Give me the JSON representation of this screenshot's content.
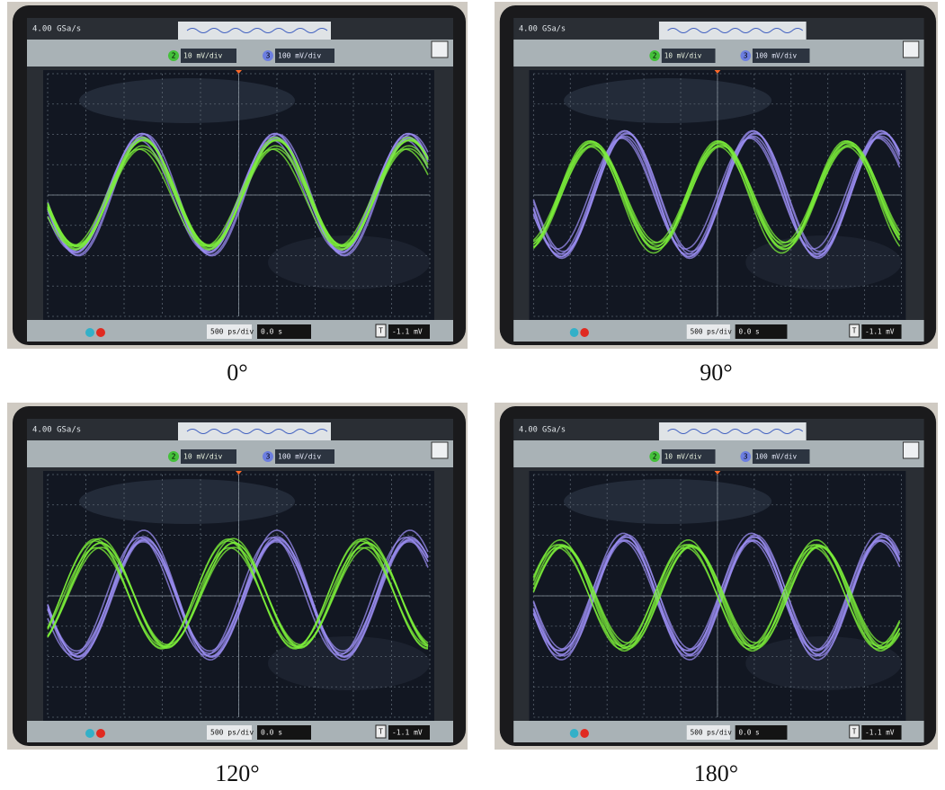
{
  "panels": [
    {
      "sample_rate": "4.00 GSa/s",
      "ch2_number": "2",
      "ch2_scale": "10 mV/div",
      "ch3_number": "3",
      "ch3_scale": "100 mV/div",
      "timebase": "500 ps/div",
      "delay": "0.0 s",
      "trigger_icon": "T",
      "trigger": "-1.1 mV",
      "caption": "0°"
    },
    {
      "sample_rate": "4.00 GSa/s",
      "ch2_number": "2",
      "ch2_scale": "10 mV/div",
      "ch3_number": "3",
      "ch3_scale": "100 mV/div",
      "timebase": "500 ps/div",
      "delay": "0.0 s",
      "trigger_icon": "T",
      "trigger": "-1.1 mV",
      "caption": "90°"
    },
    {
      "sample_rate": "4.00 GSa/s",
      "ch2_number": "2",
      "ch2_scale": "10 mV/div",
      "ch3_number": "3",
      "ch3_scale": "100 mV/div",
      "timebase": "500 ps/div",
      "delay": "0.0 s",
      "trigger_icon": "T",
      "trigger": "-1.1 mV",
      "caption": "120°"
    },
    {
      "sample_rate": "4.00 GSa/s",
      "ch2_number": "2",
      "ch2_scale": "10 mV/div",
      "ch3_number": "3",
      "ch3_scale": "100 mV/div",
      "timebase": "500 ps/div",
      "delay": "0.0 s",
      "trigger_icon": "T",
      "trigger": "-1.1 mV",
      "caption": "180°"
    }
  ]
}
